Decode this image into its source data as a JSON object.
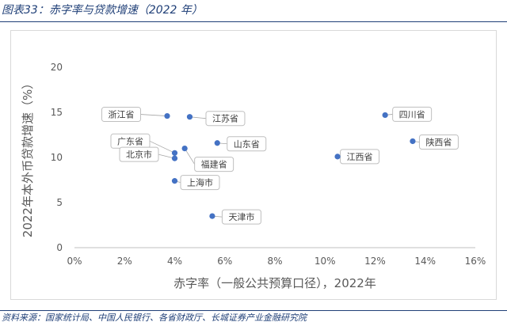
{
  "header": {
    "title": "图表33：赤字率与贷款增速（2022 年）"
  },
  "source": {
    "text": "资料来源：国家统计局、中国人民银行、各省财政厅、长城证券产业金融研究院"
  },
  "chart_data": {
    "type": "scatter",
    "title": "",
    "xlabel": "赤字率（一般公共预算口径），2022年",
    "ylabel": "2022年本外币贷款增速（%）",
    "xlim": [
      0,
      0.16
    ],
    "ylim": [
      0,
      20
    ],
    "x_ticks": [
      0,
      0.02,
      0.04,
      0.06,
      0.08,
      0.1,
      0.12,
      0.14,
      0.16
    ],
    "x_tick_labels": [
      "0%",
      "2%",
      "4%",
      "6%",
      "8%",
      "10%",
      "12%",
      "14%",
      "16%"
    ],
    "y_ticks": [
      0,
      5,
      10,
      15,
      20
    ],
    "y_tick_labels": [
      "0",
      "5",
      "10",
      "15",
      "20"
    ],
    "grid": false,
    "legend": "none",
    "marker_color": "#4472c4",
    "points": [
      {
        "label": "浙江省",
        "x": 0.037,
        "y": 14.6
      },
      {
        "label": "江苏省",
        "x": 0.046,
        "y": 14.5
      },
      {
        "label": "山东省",
        "x": 0.057,
        "y": 11.6
      },
      {
        "label": "广东省",
        "x": 0.04,
        "y": 10.5
      },
      {
        "label": "福建省",
        "x": 0.044,
        "y": 11.0
      },
      {
        "label": "北京市",
        "x": 0.04,
        "y": 9.9
      },
      {
        "label": "上海市",
        "x": 0.04,
        "y": 7.4
      },
      {
        "label": "天津市",
        "x": 0.055,
        "y": 3.5
      },
      {
        "label": "四川省",
        "x": 0.124,
        "y": 14.7
      },
      {
        "label": "陕西省",
        "x": 0.135,
        "y": 11.8
      },
      {
        "label": "江西省",
        "x": 0.105,
        "y": 10.1
      }
    ]
  }
}
